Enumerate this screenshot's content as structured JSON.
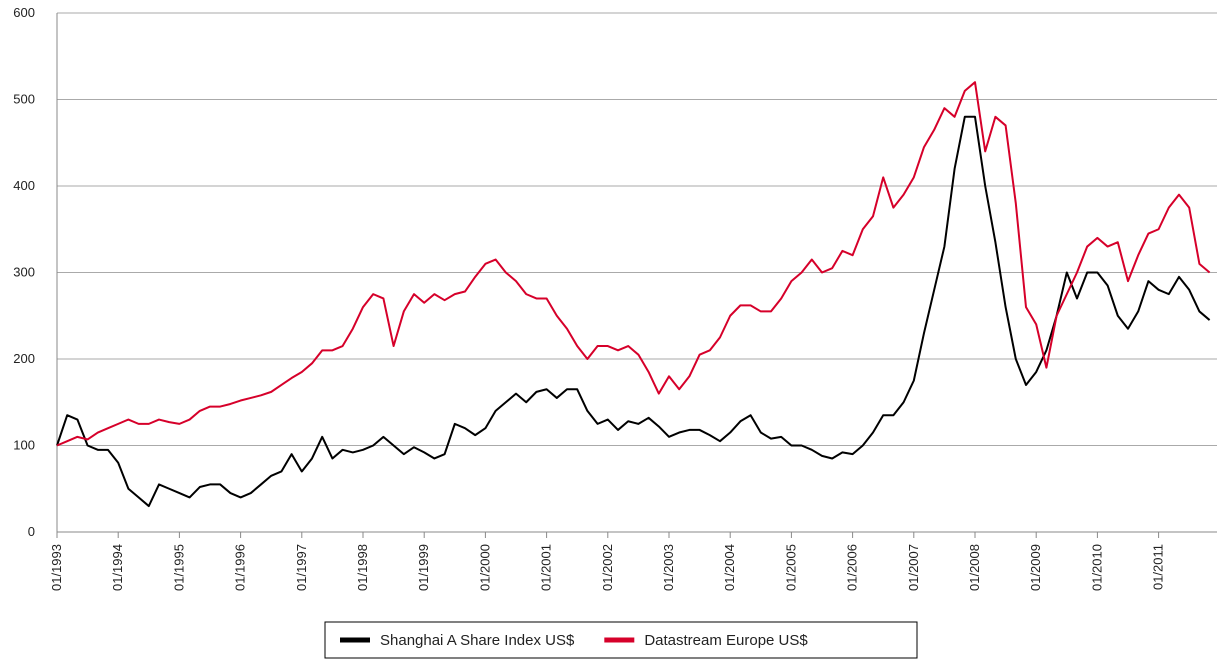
{
  "chart_data": {
    "type": "line",
    "categories": [
      "01/1993",
      null,
      null,
      null,
      null,
      null,
      "01/1994",
      null,
      null,
      null,
      null,
      null,
      "01/1995",
      null,
      null,
      null,
      null,
      null,
      "01/1996",
      null,
      null,
      null,
      null,
      null,
      "01/1997",
      null,
      null,
      null,
      null,
      null,
      "01/1998",
      null,
      null,
      null,
      null,
      null,
      "01/1999",
      null,
      null,
      null,
      null,
      null,
      "01/2000",
      null,
      null,
      null,
      null,
      null,
      "01/2001",
      null,
      null,
      null,
      null,
      null,
      "01/2002",
      null,
      null,
      null,
      null,
      null,
      "01/2003",
      null,
      null,
      null,
      null,
      null,
      "01/2004",
      null,
      null,
      null,
      null,
      null,
      "01/2005",
      null,
      null,
      null,
      null,
      null,
      "01/2006",
      null,
      null,
      null,
      null,
      null,
      "01/2007",
      null,
      null,
      null,
      null,
      null,
      "01/2008",
      null,
      null,
      null,
      null,
      null,
      "01/2009",
      null,
      null,
      null,
      null,
      null,
      "01/2010",
      null,
      null,
      null,
      null,
      null,
      "01/2011",
      null,
      null,
      null,
      null,
      null
    ],
    "series": [
      {
        "name": "Shanghai A Share Index US$",
        "color": "#000000",
        "values": [
          100,
          135,
          130,
          100,
          95,
          95,
          80,
          50,
          40,
          30,
          55,
          50,
          45,
          40,
          52,
          55,
          55,
          45,
          40,
          45,
          55,
          65,
          70,
          90,
          70,
          85,
          110,
          85,
          95,
          92,
          95,
          100,
          110,
          100,
          90,
          98,
          92,
          85,
          90,
          125,
          120,
          112,
          120,
          140,
          150,
          160,
          150,
          162,
          165,
          155,
          165,
          165,
          140,
          125,
          130,
          118,
          128,
          125,
          132,
          122,
          110,
          115,
          118,
          118,
          112,
          105,
          115,
          128,
          135,
          115,
          108,
          110,
          100,
          100,
          95,
          88,
          85,
          92,
          90,
          100,
          115,
          135,
          135,
          150,
          175,
          230,
          280,
          330,
          420,
          480,
          480,
          400,
          335,
          260,
          200,
          170,
          185,
          210,
          250,
          300,
          270,
          300,
          300,
          285,
          250,
          235,
          255,
          290,
          280,
          275,
          295,
          280,
          255,
          245
        ]
      },
      {
        "name": "Datastream Europe US$",
        "color": "#d6002a",
        "values": [
          100,
          105,
          110,
          107,
          115,
          120,
          125,
          130,
          125,
          125,
          130,
          127,
          125,
          130,
          140,
          145,
          145,
          148,
          152,
          155,
          158,
          162,
          170,
          178,
          185,
          195,
          210,
          210,
          215,
          235,
          260,
          275,
          270,
          215,
          255,
          275,
          265,
          275,
          268,
          275,
          278,
          295,
          310,
          315,
          300,
          290,
          275,
          270,
          270,
          250,
          235,
          215,
          200,
          215,
          215,
          210,
          215,
          205,
          185,
          160,
          180,
          165,
          180,
          205,
          210,
          225,
          250,
          262,
          262,
          255,
          255,
          270,
          290,
          300,
          315,
          300,
          305,
          325,
          320,
          350,
          365,
          410,
          375,
          390,
          410,
          445,
          465,
          490,
          480,
          510,
          520,
          440,
          480,
          470,
          380,
          260,
          240,
          190,
          250,
          275,
          300,
          330,
          340,
          330,
          335,
          290,
          320,
          345,
          350,
          375,
          390,
          375,
          310,
          300
        ]
      }
    ],
    "ylim": [
      0,
      600
    ],
    "yticks": [
      0,
      100,
      200,
      300,
      400,
      500,
      600
    ],
    "grid": true,
    "legend": "bottom"
  }
}
